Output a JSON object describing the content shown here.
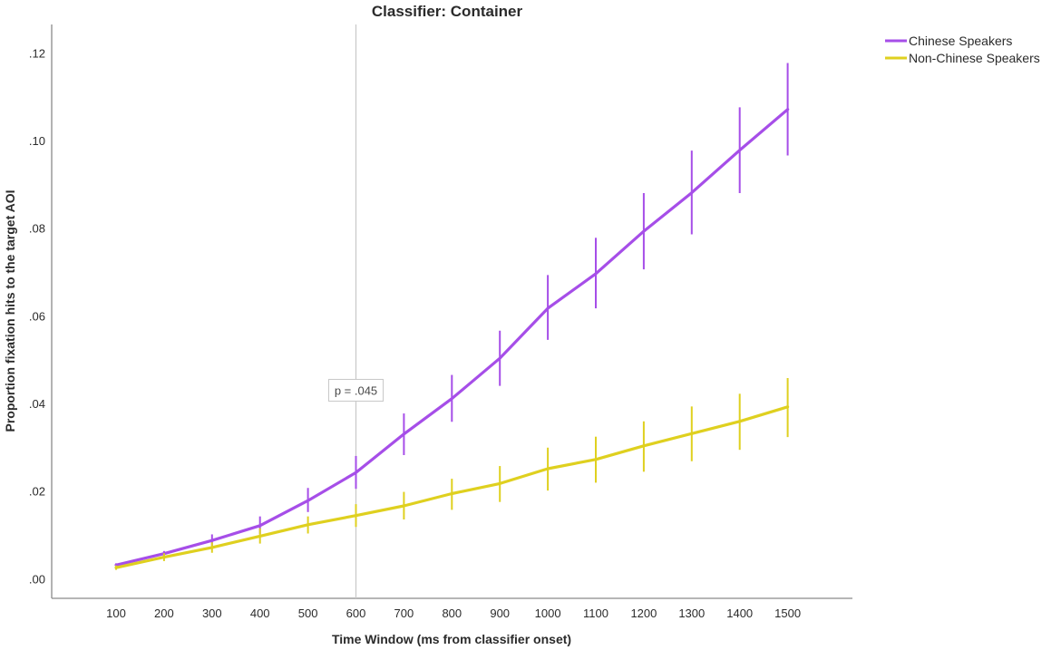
{
  "chart_data": {
    "type": "line",
    "title": "Classifier: Container",
    "xlabel": "Time Window (ms from classifier onset)",
    "ylabel": "Proportion fixation hits to the target AOI",
    "x": [
      100,
      200,
      300,
      400,
      500,
      600,
      700,
      800,
      900,
      1000,
      1100,
      1200,
      1300,
      1400,
      1500
    ],
    "x_tick_labels": [
      "100",
      "200",
      "300",
      "400",
      "500",
      "600",
      "700",
      "800",
      "900",
      "1000",
      "1100",
      "1200",
      "1300",
      "1400",
      "1500"
    ],
    "y_tick_values": [
      0,
      0.02,
      0.04,
      0.06,
      0.08,
      0.1,
      0.12
    ],
    "y_tick_labels": [
      ".00",
      ".02",
      ".04",
      ".06",
      ".08",
      ".10",
      ".12"
    ],
    "ylim": [
      -0.0045,
      0.1265
    ],
    "grid": false,
    "legend_position": "top-right",
    "series": [
      {
        "name": "Chinese Speakers",
        "color": "#a64ee8",
        "values": [
          0.0031,
          0.0057,
          0.0087,
          0.0121,
          0.0178,
          0.0242,
          0.033,
          0.0411,
          0.0503,
          0.0617,
          0.0696,
          0.0793,
          0.0881,
          0.0978,
          0.1071
        ],
        "error_low": [
          0.0027,
          0.005,
          0.0075,
          0.0102,
          0.0152,
          0.0205,
          0.0282,
          0.0358,
          0.044,
          0.0545,
          0.0617,
          0.0706,
          0.0786,
          0.088,
          0.0966
        ],
        "error_high": [
          0.0035,
          0.0063,
          0.0101,
          0.0142,
          0.0207,
          0.028,
          0.0377,
          0.0465,
          0.0566,
          0.0693,
          0.0778,
          0.088,
          0.0977,
          0.1076,
          0.1177
        ]
      },
      {
        "name": "Non-Chinese Speakers",
        "color": "#dfd01f",
        "values": [
          0.0025,
          0.0049,
          0.0071,
          0.0097,
          0.0123,
          0.0144,
          0.0166,
          0.0194,
          0.0217,
          0.0251,
          0.0272,
          0.0303,
          0.0331,
          0.0359,
          0.0392
        ],
        "error_low": [
          0.002,
          0.004,
          0.0059,
          0.008,
          0.0103,
          0.0118,
          0.0135,
          0.0157,
          0.0175,
          0.0201,
          0.0219,
          0.0244,
          0.0268,
          0.0294,
          0.0323
        ],
        "error_high": [
          0.003,
          0.0058,
          0.0083,
          0.0115,
          0.0142,
          0.017,
          0.0198,
          0.0228,
          0.0257,
          0.0299,
          0.0324,
          0.0359,
          0.0393,
          0.0422,
          0.0458
        ]
      }
    ],
    "reference_line": {
      "x": 600,
      "color": "#c8c8c8"
    },
    "annotation": {
      "text": "p = .045",
      "x": 600,
      "y": 0.043
    }
  }
}
